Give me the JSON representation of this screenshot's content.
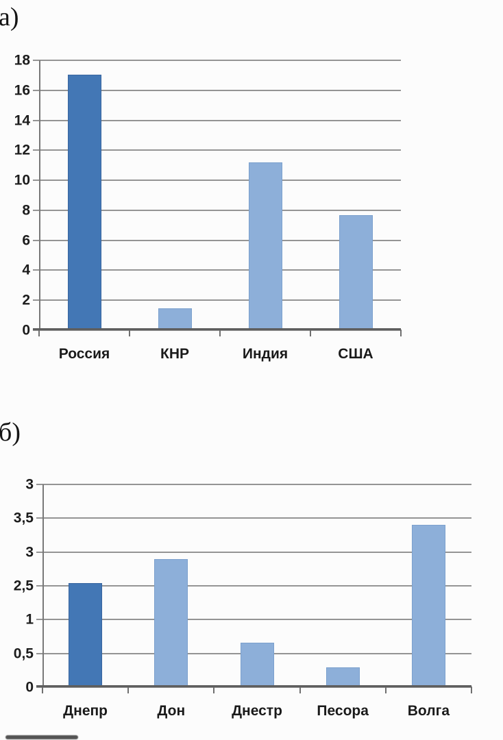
{
  "figure": {
    "background_color": "#fcfcfc",
    "panel_labels": {
      "a": "а)",
      "b": "б)"
    }
  },
  "chart_data": [
    {
      "section_label": "а)",
      "type": "bar",
      "title": "",
      "xlabel": "",
      "ylabel": "",
      "categories": [
        "Россия",
        "КНР",
        "Индия",
        "США"
      ],
      "values": [
        17,
        1.4,
        11.1,
        7.6
      ],
      "y_axis": {
        "tick_labels_top_to_bottom": [
          "18",
          "16",
          "14",
          "12",
          "10",
          "8",
          "6",
          "4",
          "2",
          "0"
        ],
        "min": 0,
        "max_units": 18,
        "grid": true,
        "decimal_separator": "."
      },
      "legend": "none",
      "bar_units": [
        17.0,
        1.42,
        11.15,
        7.63
      ],
      "bar_colors": [
        "#4377b5",
        "#8dafd9",
        "#8dafd9",
        "#8dafd9"
      ],
      "bar_border_colors": [
        "#38659f",
        "#7ba0cd",
        "#7ba0cd",
        "#7ba0cd"
      ]
    },
    {
      "section_label": "б)",
      "type": "bar",
      "title": "",
      "xlabel": "",
      "ylabel": "",
      "categories": [
        "Днепр",
        "Дон",
        "Днестр",
        "Песора",
        "Волга"
      ],
      "values": [
        2.55,
        2.9,
        0.65,
        0.3,
        3.4
      ],
      "y_axis": {
        "tick_labels_top_to_bottom": [
          "3",
          "3,5",
          "3",
          "2,5",
          "1",
          "0,5",
          "0"
        ],
        "min": 0,
        "max_units": 6,
        "grid": true,
        "decimal_separator": ","
      },
      "legend": "none",
      "bar_units": [
        3.06,
        3.77,
        1.3,
        0.57,
        4.78
      ],
      "bar_colors": [
        "#4377b5",
        "#8dafd9",
        "#8dafd9",
        "#8dafd9",
        "#8dafd9"
      ],
      "bar_border_colors": [
        "#38659f",
        "#7ba0cd",
        "#7ba0cd",
        "#7ba0cd",
        "#7ba0cd"
      ]
    }
  ]
}
